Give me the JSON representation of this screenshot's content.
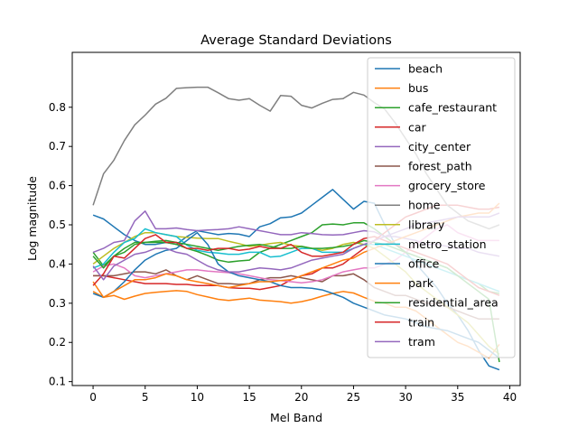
{
  "chart_data": {
    "type": "line",
    "title": "Average Standard Deviations",
    "xlabel": "Mel Band",
    "ylabel": "Log magnitude",
    "xlim": [
      -2,
      41
    ],
    "ylim": [
      0.09,
      0.94
    ],
    "x_ticks": [
      0,
      5,
      10,
      15,
      20,
      25,
      30,
      35,
      40
    ],
    "y_ticks": [
      0.1,
      0.2,
      0.3,
      0.4,
      0.5,
      0.6,
      0.7,
      0.8
    ],
    "grid": false,
    "legend_position": "top-right",
    "x": [
      0,
      1,
      2,
      3,
      4,
      5,
      6,
      7,
      8,
      9,
      10,
      11,
      12,
      13,
      14,
      15,
      16,
      17,
      18,
      19,
      20,
      21,
      22,
      23,
      24,
      25,
      26,
      27,
      28,
      29,
      30,
      31,
      32,
      33,
      34,
      35,
      36,
      37,
      38,
      39
    ],
    "series": [
      {
        "name": "beach",
        "color": "#1f77b4",
        "values": [
          0.525,
          0.515,
          0.495,
          0.475,
          0.46,
          0.45,
          0.45,
          0.455,
          0.45,
          0.47,
          0.485,
          0.48,
          0.475,
          0.478,
          0.476,
          0.47,
          0.495,
          0.503,
          0.518,
          0.52,
          0.53,
          0.55,
          0.57,
          0.59,
          0.565,
          0.54,
          0.56,
          0.555,
          0.5,
          0.45,
          0.43,
          0.4,
          0.37,
          0.34,
          0.3,
          0.27,
          0.23,
          0.18,
          0.14,
          0.13
        ]
      },
      {
        "name": "bus",
        "color": "#ff7f0e",
        "values": [
          0.33,
          0.315,
          0.32,
          0.31,
          0.318,
          0.325,
          0.328,
          0.33,
          0.332,
          0.33,
          0.322,
          0.316,
          0.31,
          0.307,
          0.31,
          0.313,
          0.308,
          0.306,
          0.304,
          0.3,
          0.304,
          0.31,
          0.318,
          0.325,
          0.33,
          0.326,
          0.315,
          0.305,
          0.3,
          0.29,
          0.29,
          0.28,
          0.26,
          0.24,
          0.22,
          0.2,
          0.19,
          0.175,
          0.16,
          0.195
        ]
      },
      {
        "name": "cafe_restaurant",
        "color": "#2ca02c",
        "values": [
          0.43,
          0.395,
          0.42,
          0.44,
          0.455,
          0.455,
          0.455,
          0.455,
          0.45,
          0.44,
          0.432,
          0.422,
          0.41,
          0.405,
          0.408,
          0.41,
          0.43,
          0.44,
          0.45,
          0.46,
          0.47,
          0.48,
          0.5,
          0.502,
          0.5,
          0.505,
          0.505,
          0.49,
          0.47,
          0.45,
          0.43,
          0.42,
          0.41,
          0.4,
          0.39,
          0.37,
          0.36,
          0.35,
          0.33,
          0.325
        ]
      },
      {
        "name": "car",
        "color": "#d62728",
        "values": [
          0.37,
          0.37,
          0.365,
          0.36,
          0.355,
          0.35,
          0.35,
          0.35,
          0.348,
          0.348,
          0.345,
          0.345,
          0.345,
          0.34,
          0.338,
          0.338,
          0.335,
          0.34,
          0.345,
          0.36,
          0.37,
          0.375,
          0.39,
          0.39,
          0.4,
          0.42,
          0.44,
          0.46,
          0.48,
          0.5,
          0.52,
          0.53,
          0.54,
          0.55,
          0.55,
          0.55,
          0.545,
          0.54,
          0.54,
          0.545
        ]
      },
      {
        "name": "city_center",
        "color": "#9467bd",
        "values": [
          0.43,
          0.44,
          0.455,
          0.46,
          0.51,
          0.535,
          0.49,
          0.49,
          0.492,
          0.488,
          0.485,
          0.487,
          0.488,
          0.49,
          0.495,
          0.49,
          0.485,
          0.48,
          0.475,
          0.475,
          0.48,
          0.478,
          0.475,
          0.474,
          0.475,
          0.48,
          0.485,
          0.482,
          0.47,
          0.47,
          0.465,
          0.46,
          0.45,
          0.45,
          0.445,
          0.44,
          0.44,
          0.43,
          0.425,
          0.42
        ]
      },
      {
        "name": "forest_path",
        "color": "#8c564b",
        "values": [
          0.37,
          0.37,
          0.37,
          0.375,
          0.38,
          0.38,
          0.375,
          0.385,
          0.37,
          0.36,
          0.37,
          0.36,
          0.35,
          0.35,
          0.348,
          0.35,
          0.36,
          0.365,
          0.365,
          0.37,
          0.365,
          0.36,
          0.355,
          0.37,
          0.37,
          0.375,
          0.36,
          0.34,
          0.33,
          0.32,
          0.32,
          0.31,
          0.3,
          0.3,
          0.29,
          0.28,
          0.27,
          0.26,
          0.26,
          0.26
        ]
      },
      {
        "name": "grocery_store",
        "color": "#e377c2",
        "values": [
          0.38,
          0.395,
          0.4,
          0.39,
          0.37,
          0.365,
          0.37,
          0.375,
          0.38,
          0.385,
          0.385,
          0.382,
          0.38,
          0.378,
          0.375,
          0.37,
          0.365,
          0.36,
          0.358,
          0.355,
          0.352,
          0.355,
          0.36,
          0.37,
          0.38,
          0.385,
          0.39,
          0.39,
          0.4,
          0.41,
          0.43,
          0.45,
          0.47,
          0.49,
          0.5,
          0.48,
          0.47,
          0.46,
          0.46,
          0.46
        ]
      },
      {
        "name": "home",
        "color": "#7f7f7f",
        "values": [
          0.55,
          0.63,
          0.665,
          0.715,
          0.755,
          0.78,
          0.808,
          0.823,
          0.848,
          0.85,
          0.851,
          0.851,
          0.837,
          0.822,
          0.818,
          0.822,
          0.805,
          0.79,
          0.83,
          0.828,
          0.805,
          0.798,
          0.81,
          0.82,
          0.822,
          0.838,
          0.831,
          0.812,
          0.795,
          0.76,
          0.72,
          0.68,
          0.63,
          0.59,
          0.55,
          0.53,
          0.51,
          0.5,
          0.49,
          0.5
        ]
      },
      {
        "name": "library",
        "color": "#bcbd22",
        "values": [
          0.4,
          0.42,
          0.44,
          0.455,
          0.47,
          0.48,
          0.48,
          0.475,
          0.47,
          0.468,
          0.466,
          0.465,
          0.465,
          0.458,
          0.452,
          0.445,
          0.448,
          0.452,
          0.455,
          0.448,
          0.445,
          0.44,
          0.435,
          0.44,
          0.45,
          0.455,
          0.45,
          0.44,
          0.42,
          0.4,
          0.38,
          0.35,
          0.33,
          0.31,
          0.29,
          0.27,
          0.25,
          0.22,
          0.19,
          0.17
        ]
      },
      {
        "name": "metro_station",
        "color": "#17becf",
        "values": [
          0.39,
          0.4,
          0.43,
          0.455,
          0.465,
          0.49,
          0.48,
          0.475,
          0.47,
          0.448,
          0.435,
          0.43,
          0.428,
          0.425,
          0.425,
          0.43,
          0.43,
          0.418,
          0.42,
          0.43,
          0.44,
          0.44,
          0.43,
          0.43,
          0.43,
          0.44,
          0.45,
          0.45,
          0.44,
          0.43,
          0.42,
          0.41,
          0.4,
          0.39,
          0.38,
          0.37,
          0.36,
          0.35,
          0.34,
          0.33
        ]
      },
      {
        "name": "office",
        "color": "#1f77b4",
        "values": [
          0.325,
          0.315,
          0.33,
          0.355,
          0.385,
          0.41,
          0.425,
          0.435,
          0.44,
          0.46,
          0.48,
          0.45,
          0.4,
          0.38,
          0.37,
          0.365,
          0.36,
          0.355,
          0.345,
          0.34,
          0.34,
          0.338,
          0.334,
          0.325,
          0.315,
          0.3,
          0.29,
          0.28,
          0.27,
          0.265,
          0.26,
          0.25,
          0.24,
          0.235,
          0.23,
          0.22,
          0.21,
          0.2,
          0.18,
          0.16
        ]
      },
      {
        "name": "park",
        "color": "#ff7f0e",
        "values": [
          0.355,
          0.315,
          0.33,
          0.345,
          0.36,
          0.36,
          0.365,
          0.375,
          0.37,
          0.36,
          0.355,
          0.35,
          0.345,
          0.34,
          0.345,
          0.35,
          0.355,
          0.355,
          0.358,
          0.36,
          0.37,
          0.38,
          0.39,
          0.4,
          0.41,
          0.415,
          0.43,
          0.44,
          0.45,
          0.46,
          0.47,
          0.48,
          0.49,
          0.5,
          0.51,
          0.52,
          0.525,
          0.53,
          0.53,
          0.555
        ]
      },
      {
        "name": "residential_area",
        "color": "#2ca02c",
        "values": [
          0.42,
          0.39,
          0.42,
          0.43,
          0.45,
          0.455,
          0.458,
          0.46,
          0.455,
          0.45,
          0.445,
          0.44,
          0.435,
          0.44,
          0.445,
          0.448,
          0.45,
          0.445,
          0.44,
          0.44,
          0.445,
          0.44,
          0.44,
          0.442,
          0.445,
          0.45,
          0.46,
          0.455,
          0.45,
          0.44,
          0.43,
          0.42,
          0.41,
          0.4,
          0.39,
          0.37,
          0.35,
          0.33,
          0.31,
          0.15
        ]
      },
      {
        "name": "train",
        "color": "#d62728",
        "values": [
          0.345,
          0.375,
          0.42,
          0.415,
          0.44,
          0.465,
          0.475,
          0.455,
          0.455,
          0.44,
          0.44,
          0.435,
          0.44,
          0.44,
          0.435,
          0.438,
          0.445,
          0.44,
          0.44,
          0.45,
          0.43,
          0.42,
          0.42,
          0.425,
          0.43,
          0.45,
          0.465,
          0.47,
          0.46,
          0.45,
          0.44,
          0.43,
          0.42,
          0.41,
          0.4,
          0.38,
          0.36,
          0.34,
          0.33,
          0.32
        ]
      },
      {
        "name": "tram",
        "color": "#9467bd",
        "values": [
          0.395,
          0.36,
          0.395,
          0.41,
          0.425,
          0.43,
          0.44,
          0.44,
          0.43,
          0.425,
          0.41,
          0.395,
          0.385,
          0.38,
          0.38,
          0.385,
          0.39,
          0.388,
          0.385,
          0.39,
          0.4,
          0.41,
          0.415,
          0.42,
          0.425,
          0.44,
          0.45,
          0.46,
          0.47,
          0.48,
          0.49,
          0.5,
          0.505,
          0.51,
          0.515,
          0.52,
          0.52,
          0.52,
          0.52,
          0.53
        ]
      }
    ]
  }
}
